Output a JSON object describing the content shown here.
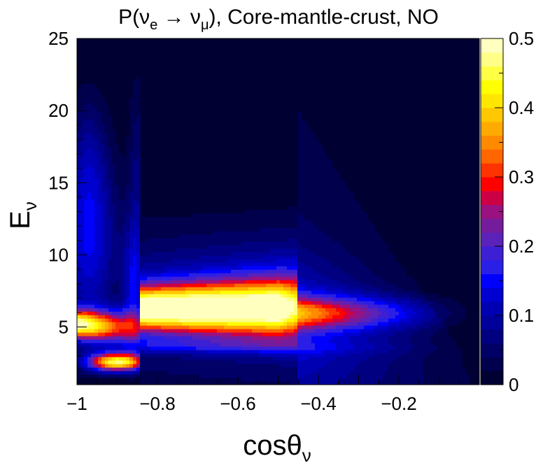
{
  "chart_data": {
    "type": "heatmap",
    "title": {
      "prefix": "P(ν",
      "sub1": "e",
      "arrow": " → ν",
      "sub2": "μ",
      "suffix": "), Core-mantle-crust, NO"
    },
    "xlabel": {
      "main": "cosθ",
      "sub": "ν"
    },
    "ylabel": {
      "main": "E",
      "sub": "ν"
    },
    "xlim": [
      -1,
      0
    ],
    "ylim": [
      1,
      25
    ],
    "x_ticks": [
      {
        "value": -1,
        "label": "−1"
      },
      {
        "value": -0.8,
        "label": "−0.8"
      },
      {
        "value": -0.6,
        "label": "−0.6"
      },
      {
        "value": -0.4,
        "label": "−0.4"
      },
      {
        "value": -0.2,
        "label": "−0.2"
      }
    ],
    "y_ticks": [
      {
        "value": 5,
        "label": "5"
      },
      {
        "value": 10,
        "label": "10"
      },
      {
        "value": 15,
        "label": "15"
      },
      {
        "value": 20,
        "label": "20"
      },
      {
        "value": 25,
        "label": "25"
      }
    ],
    "colorbar": {
      "range": [
        0,
        0.5
      ],
      "levels": 20,
      "ticks": [
        {
          "value": 0,
          "label": "0"
        },
        {
          "value": 0.1,
          "label": "0.1"
        },
        {
          "value": 0.2,
          "label": "0.2"
        },
        {
          "value": 0.3,
          "label": "0.3"
        },
        {
          "value": 0.4,
          "label": "0.4"
        },
        {
          "value": 0.5,
          "label": "0.5"
        }
      ],
      "colors": [
        "#000033",
        "#00004d",
        "#000066",
        "#000080",
        "#00009a",
        "#0000b3",
        "#0000d0",
        "#0000ff",
        "#2a1fe6",
        "#3d1fd4",
        "#5a22b8",
        "#751c9c",
        "#9a1180",
        "#cc0044",
        "#ff0000",
        "#ff3300",
        "#ff6600",
        "#ff8a00",
        "#ffaa00",
        "#ffc800",
        "#ffe600",
        "#ffff00",
        "#ffff44",
        "#ffff88",
        "#ffffc0"
      ]
    },
    "features": [
      {
        "name": "main-resonance-peak",
        "cos_theta": -0.7,
        "energy": 6.3,
        "probability": 0.48
      },
      {
        "name": "core-peak-upper",
        "cos_theta": -0.98,
        "energy": 5.2,
        "probability": 0.45
      },
      {
        "name": "core-peak-lower",
        "cos_theta": -0.9,
        "energy": 2.6,
        "probability": 0.45
      },
      {
        "name": "mantle-core-boundary",
        "cos_theta": -0.84,
        "energy": 20,
        "probability": 0.08
      },
      {
        "name": "crust-edge-ridge",
        "cos_theta": -0.45,
        "energy": 20.8,
        "probability": 0.06
      }
    ]
  }
}
